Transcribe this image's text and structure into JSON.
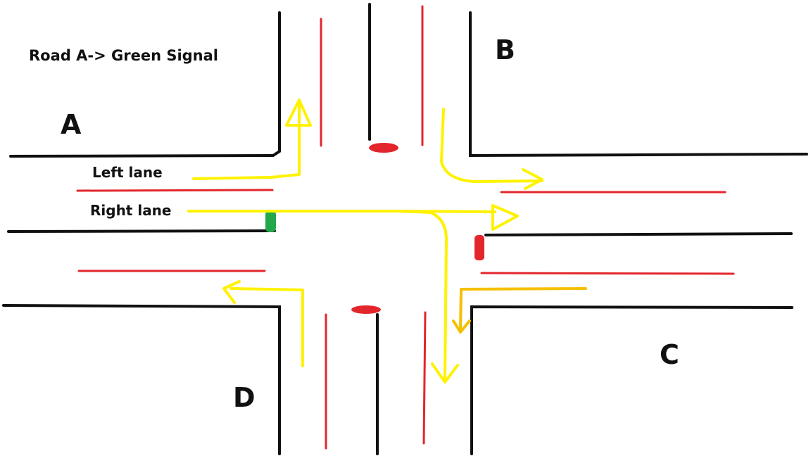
{
  "caption": "Road A-> Green Signal",
  "roads": {
    "a": "A",
    "b": "B",
    "c": "C",
    "d": "D"
  },
  "lanes": {
    "left": "Left lane",
    "right": "Right lane"
  },
  "colors": {
    "road_edge": "#111111",
    "lane_divider": "#e3262b",
    "path_arrow": "#fff200",
    "path_arrow_turn": "#f5c000",
    "signal_red": "#e3262b",
    "signal_green": "#22a84a"
  },
  "signals": {
    "road_a": "green",
    "road_b": "red",
    "road_c": "red",
    "road_d": "red"
  }
}
